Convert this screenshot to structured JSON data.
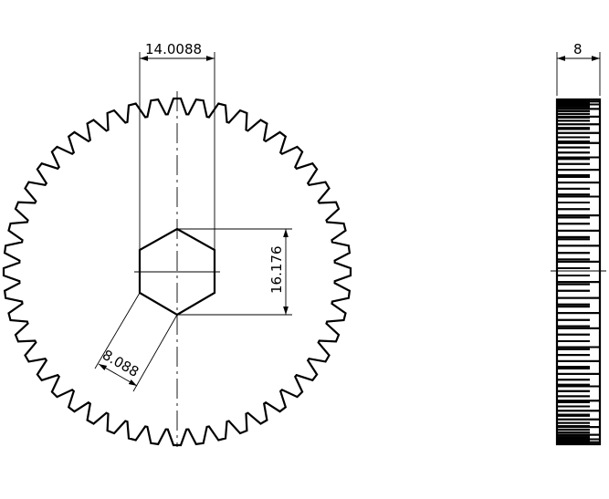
{
  "front_view": {
    "tooth_count": 48,
    "dimensions": {
      "hex_across_flats": "14.0088",
      "hex_across_corners": "16.176",
      "hex_side": "8.088"
    }
  },
  "side_view": {
    "dimensions": {
      "face_width": "8"
    }
  }
}
